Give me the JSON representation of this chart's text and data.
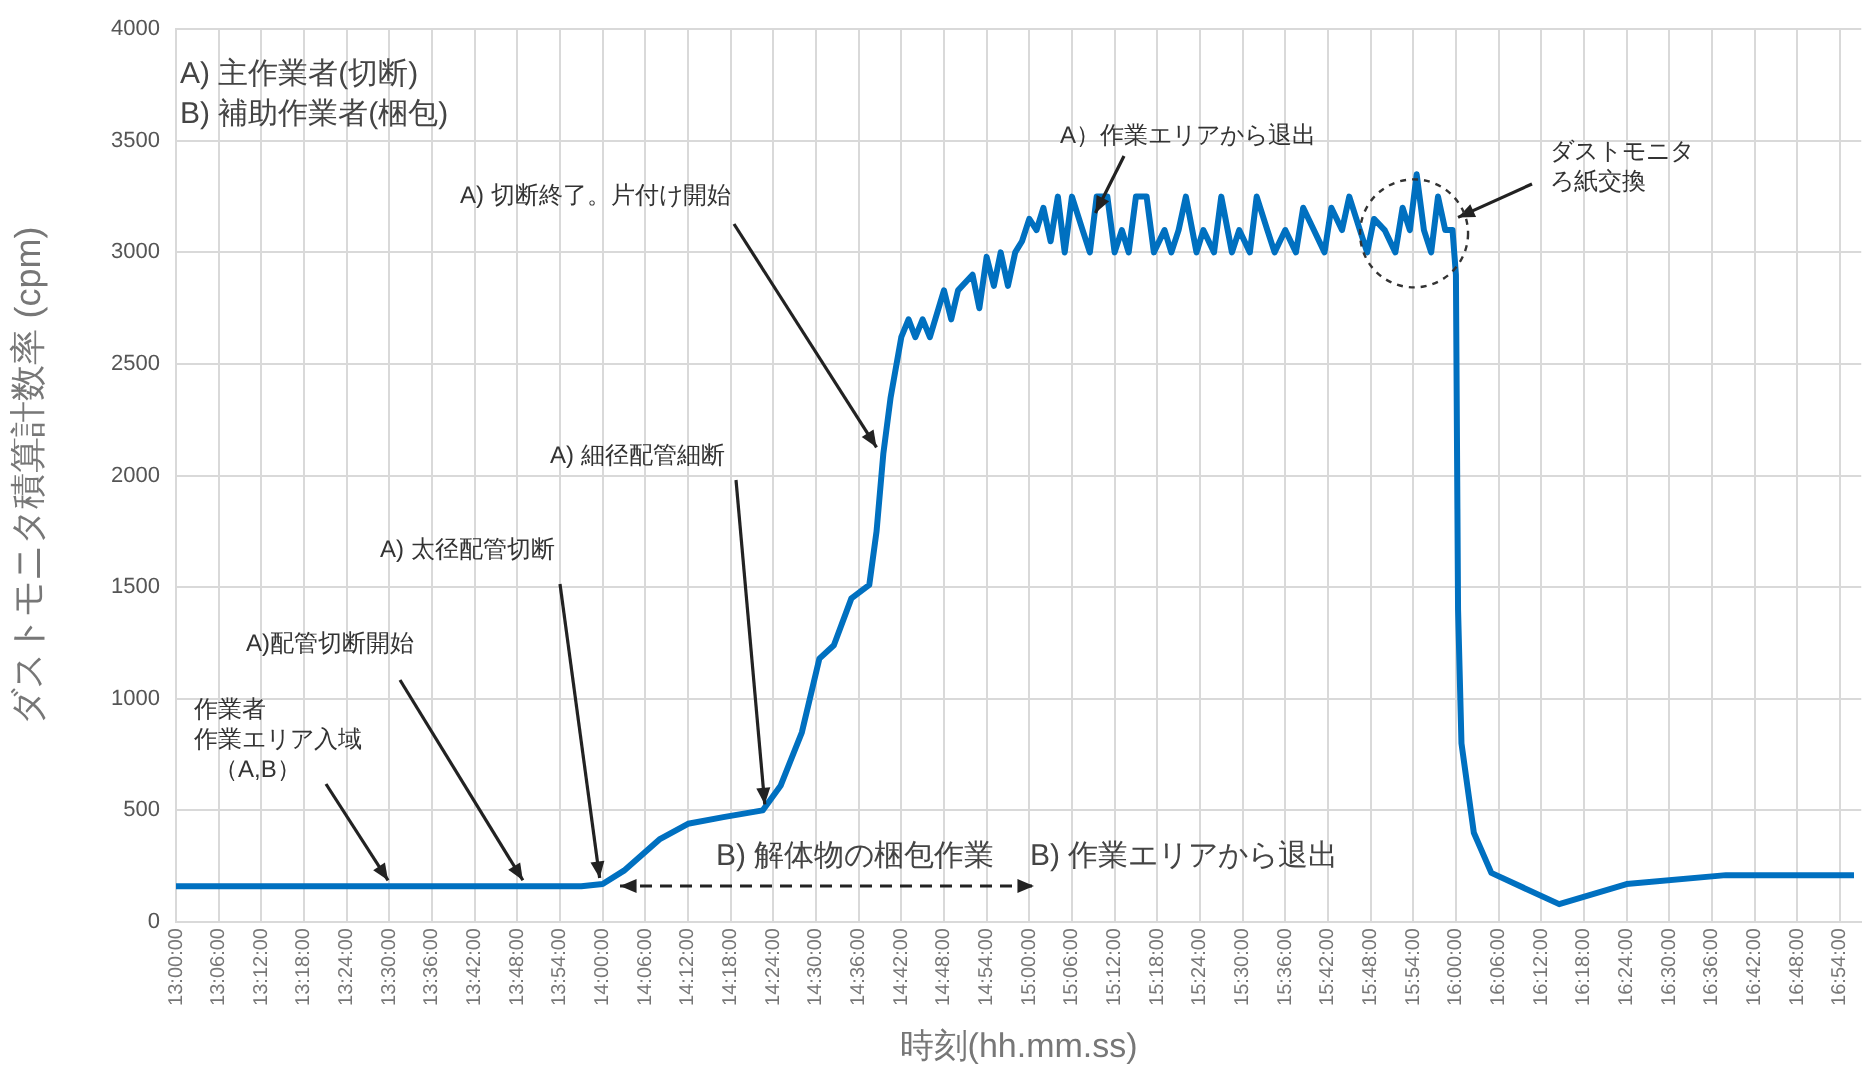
{
  "chart_data": {
    "type": "line",
    "xlabel": "時刻(hh.mm.ss)",
    "ylabel": "ダストモニタ積算計数率 (cpm)",
    "x": [
      13,
      13.5,
      13.95,
      14,
      14.05,
      14.133,
      14.2,
      14.283,
      14.375,
      14.417,
      14.467,
      14.508,
      14.542,
      14.583,
      14.625,
      14.642,
      14.658,
      14.675,
      14.7,
      14.717,
      14.733,
      14.75,
      14.767,
      14.8,
      14.817,
      14.833,
      14.867,
      14.883,
      14.9,
      14.917,
      14.933,
      14.95,
      14.967,
      14.983,
      15,
      15.017,
      15.033,
      15.05,
      15.067,
      15.083,
      15.1,
      15.125,
      15.142,
      15.158,
      15.183,
      15.2,
      15.217,
      15.233,
      15.25,
      15.275,
      15.292,
      15.317,
      15.333,
      15.35,
      15.367,
      15.392,
      15.408,
      15.433,
      15.45,
      15.475,
      15.492,
      15.517,
      15.533,
      15.558,
      15.575,
      15.6,
      15.625,
      15.642,
      15.667,
      15.692,
      15.708,
      15.733,
      15.75,
      15.775,
      15.792,
      15.808,
      15.833,
      15.858,
      15.875,
      15.892,
      15.908,
      15.925,
      15.942,
      15.958,
      15.975,
      15.992,
      16,
      16.005,
      16.013,
      16.042,
      16.083,
      16.242,
      16.4,
      16.633,
      16.933
    ],
    "series": [
      {
        "color": "#0070c0",
        "values": [
          160,
          160,
          160,
          170,
          230,
          370,
          440,
          470,
          500,
          610,
          850,
          1180,
          1240,
          1450,
          1510,
          1750,
          2100,
          2350,
          2620,
          2700,
          2620,
          2700,
          2620,
          2830,
          2700,
          2830,
          2900,
          2750,
          2980,
          2850,
          3000,
          2850,
          3000,
          3050,
          3150,
          3100,
          3200,
          3050,
          3250,
          3000,
          3250,
          3100,
          3000,
          3250,
          3250,
          3000,
          3100,
          3000,
          3250,
          3250,
          3000,
          3100,
          3000,
          3100,
          3250,
          3000,
          3100,
          3000,
          3250,
          3000,
          3100,
          3000,
          3250,
          3100,
          3000,
          3100,
          3000,
          3200,
          3100,
          3000,
          3200,
          3100,
          3250,
          3100,
          3000,
          3150,
          3100,
          3000,
          3200,
          3100,
          3350,
          3100,
          3000,
          3250,
          3100,
          3100,
          2900,
          1400,
          800,
          400,
          220,
          80,
          170,
          210,
          210
        ]
      }
    ],
    "xlim": [
      13,
      16.95
    ],
    "xticks": [
      {
        "value": 13,
        "label": "13:00:00"
      },
      {
        "value": 13.1,
        "label": "13:06:00"
      },
      {
        "value": 13.2,
        "label": "13:12:00"
      },
      {
        "value": 13.3,
        "label": "13:18:00"
      },
      {
        "value": 13.4,
        "label": "13:24:00"
      },
      {
        "value": 13.5,
        "label": "13:30:00"
      },
      {
        "value": 13.6,
        "label": "13:36:00"
      },
      {
        "value": 13.7,
        "label": "13:42:00"
      },
      {
        "value": 13.8,
        "label": "13:48:00"
      },
      {
        "value": 13.9,
        "label": "13:54:00"
      },
      {
        "value": 14,
        "label": "14:00:00"
      },
      {
        "value": 14.1,
        "label": "14:06:00"
      },
      {
        "value": 14.2,
        "label": "14:12:00"
      },
      {
        "value": 14.3,
        "label": "14:18:00"
      },
      {
        "value": 14.4,
        "label": "14:24:00"
      },
      {
        "value": 14.5,
        "label": "14:30:00"
      },
      {
        "value": 14.6,
        "label": "14:36:00"
      },
      {
        "value": 14.7,
        "label": "14:42:00"
      },
      {
        "value": 14.8,
        "label": "14:48:00"
      },
      {
        "value": 14.9,
        "label": "14:54:00"
      },
      {
        "value": 15,
        "label": "15:00:00"
      },
      {
        "value": 15.1,
        "label": "15:06:00"
      },
      {
        "value": 15.2,
        "label": "15:12:00"
      },
      {
        "value": 15.3,
        "label": "15:18:00"
      },
      {
        "value": 15.4,
        "label": "15:24:00"
      },
      {
        "value": 15.5,
        "label": "15:30:00"
      },
      {
        "value": 15.6,
        "label": "15:36:00"
      },
      {
        "value": 15.7,
        "label": "15:42:00"
      },
      {
        "value": 15.8,
        "label": "15:48:00"
      },
      {
        "value": 15.9,
        "label": "15:54:00"
      },
      {
        "value": 16,
        "label": "16:00:00"
      },
      {
        "value": 16.1,
        "label": "16:06:00"
      },
      {
        "value": 16.2,
        "label": "16:12:00"
      },
      {
        "value": 16.3,
        "label": "16:18:00"
      },
      {
        "value": 16.4,
        "label": "16:24:00"
      },
      {
        "value": 16.5,
        "label": "16:30:00"
      },
      {
        "value": 16.6,
        "label": "16:36:00"
      },
      {
        "value": 16.7,
        "label": "16:42:00"
      },
      {
        "value": 16.8,
        "label": "16:48:00"
      },
      {
        "value": 16.9,
        "label": "16:54:00"
      }
    ],
    "ylim": [
      0,
      4000
    ],
    "yticks": [
      0,
      500,
      1000,
      1500,
      2000,
      2500,
      3000,
      3500,
      4000
    ],
    "grid": true,
    "marker": "none",
    "line_style": "solid",
    "annotations": [
      "A) 主作業者(切断)",
      "B) 補助作業者(梱包)",
      {
        "text": "作業者作業エリア入域（A,B）",
        "x": 13.497,
        "y": 160
      },
      {
        "text": "A)配管切断開始",
        "x": 13.813,
        "y": 160
      },
      {
        "text": "A) 太径配管切断",
        "x": 13.993,
        "y": 170
      },
      {
        "text": "A) 細径配管細断",
        "x": 14.38,
        "y": 500
      },
      {
        "text": "A) 切断終了。片付け開始",
        "x": 14.642,
        "y": 2100
      },
      {
        "text": "A）作業エリアから退出",
        "x": 15.155,
        "y": 3150
      },
      {
        "text": "ダストモニタろ紙交換",
        "x": 16.005,
        "y": 3130
      },
      "B) 作業エリアから退出",
      "B) 解体物の梱包作業"
    ]
  }
}
